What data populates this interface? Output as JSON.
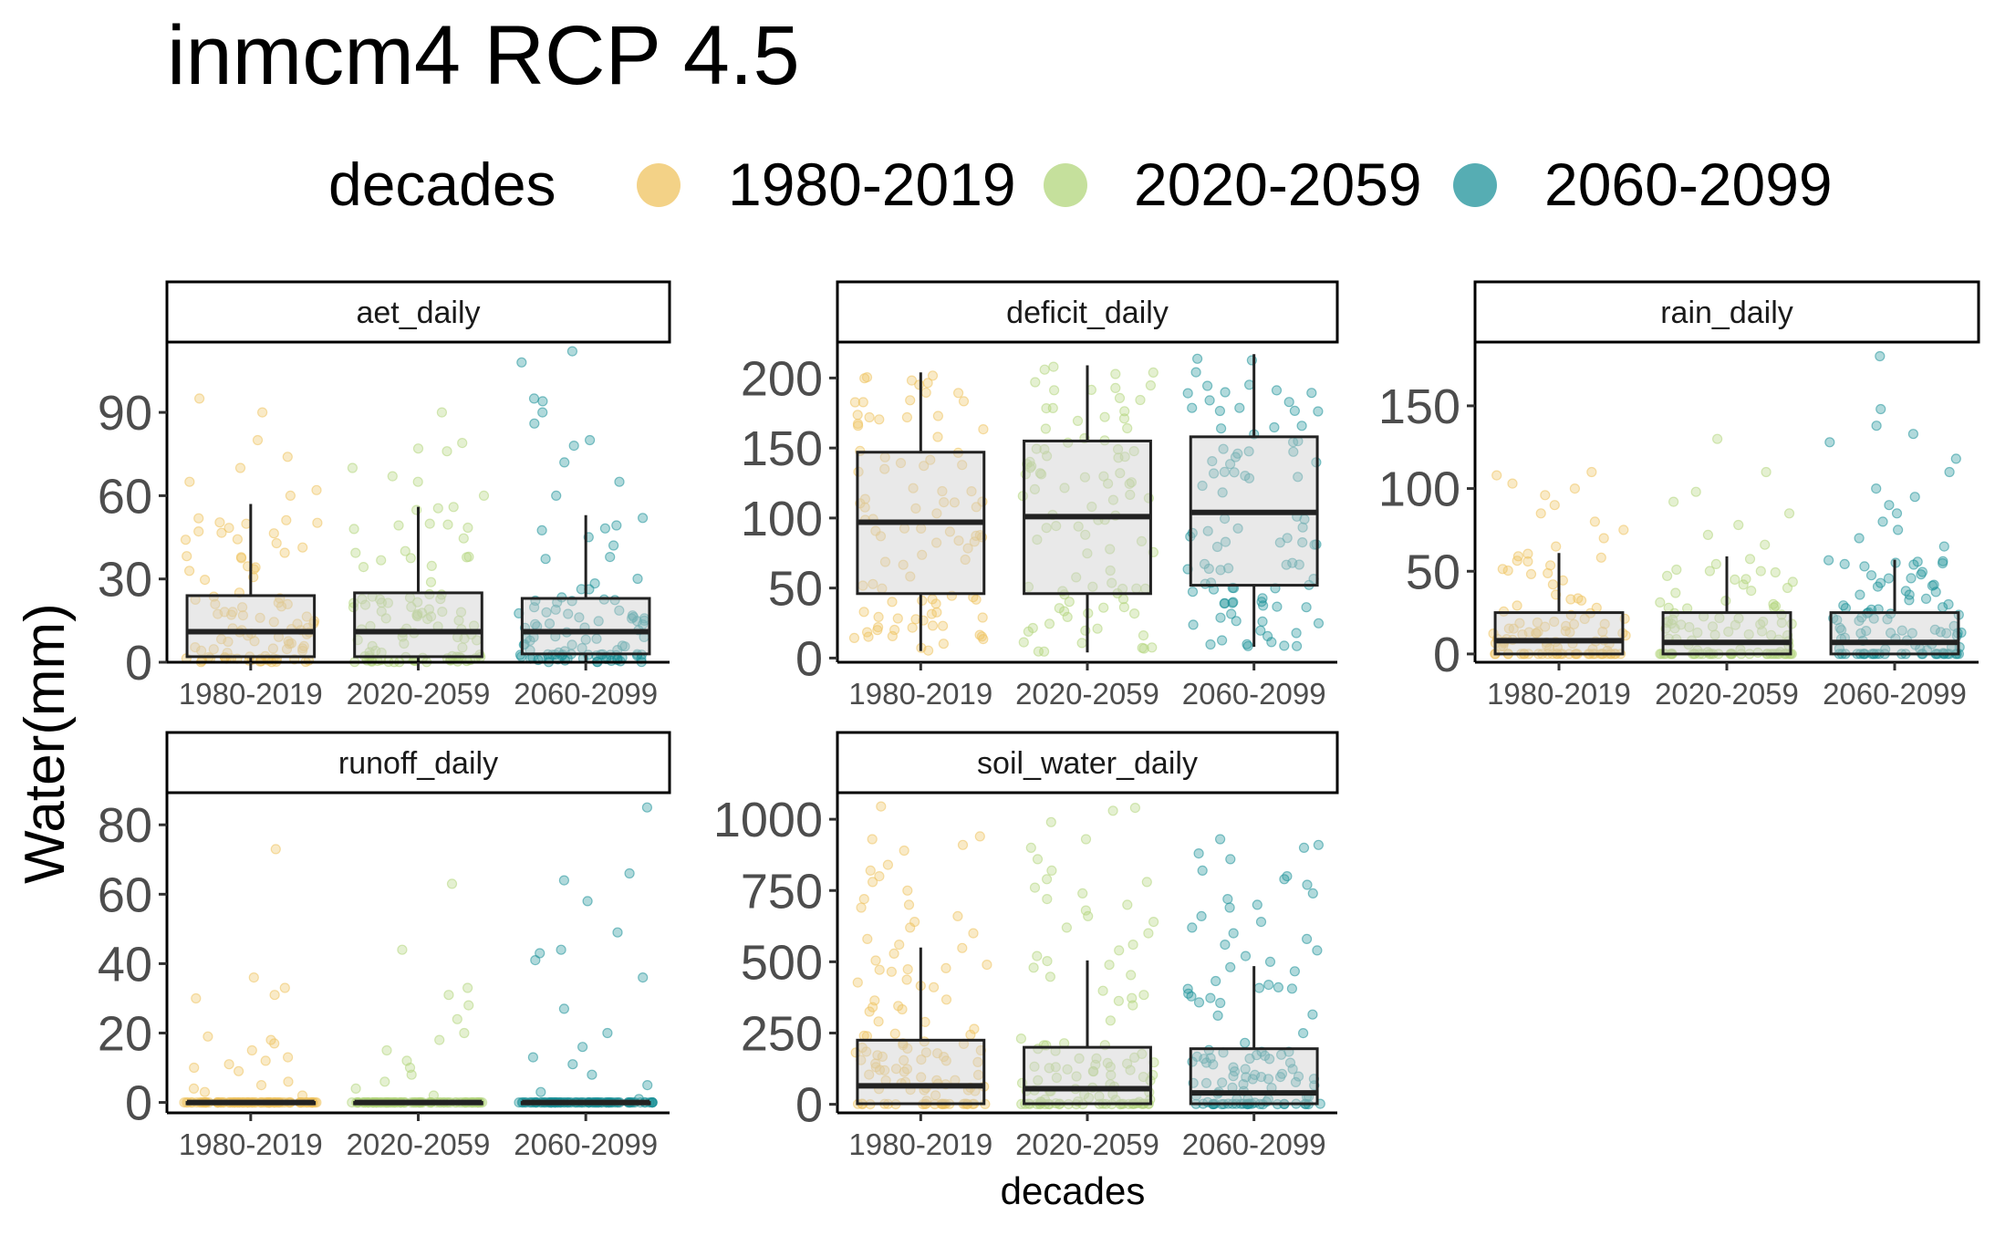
{
  "chart_data": {
    "type": "box",
    "title": "inmcm4 RCP 4.5",
    "xlabel": "decades",
    "ylabel": "Water(mm)",
    "legend": {
      "title": "decades",
      "position": "top",
      "entries": [
        {
          "label": "1980-2019",
          "color": "#EFC35F"
        },
        {
          "label": "2020-2059",
          "color": "#B2D57B"
        },
        {
          "label": "2060-2099",
          "color": "#1E9299"
        }
      ]
    },
    "categories": [
      "1980-2019",
      "2020-2059",
      "2060-2099"
    ],
    "grid": false,
    "points_shown": "jittered daily values with alpha",
    "panels": [
      {
        "name": "aet_daily",
        "ylim": [
          0,
          115
        ],
        "yticks": [
          0,
          30,
          60,
          90
        ],
        "boxes": [
          {
            "category": "1980-2019",
            "lower_whisker": 0,
            "q1": 2,
            "median": 11,
            "q3": 24,
            "upper_whisker": 57
          },
          {
            "category": "2020-2059",
            "lower_whisker": 0,
            "q1": 2,
            "median": 11,
            "q3": 25,
            "upper_whisker": 56
          },
          {
            "category": "2060-2099",
            "lower_whisker": 0,
            "q1": 3,
            "median": 11,
            "q3": 23,
            "upper_whisker": 53
          }
        ],
        "outliers": [
          {
            "category": "1980-2019",
            "values": [
              95,
              90,
              80,
              74,
              70,
              65,
              62,
              60
            ]
          },
          {
            "category": "2020-2059",
            "values": [
              90,
              79,
              77,
              76,
              70,
              67,
              65,
              60
            ]
          },
          {
            "category": "2060-2099",
            "values": [
              112,
              108,
              95,
              94,
              90,
              86,
              80,
              78,
              72,
              65,
              60
            ]
          }
        ]
      },
      {
        "name": "deficit_daily",
        "ylim": [
          -3,
          225
        ],
        "yticks": [
          0,
          50,
          100,
          150,
          200
        ],
        "boxes": [
          {
            "category": "1980-2019",
            "lower_whisker": 5,
            "q1": 46,
            "median": 97,
            "q3": 147,
            "upper_whisker": 204
          },
          {
            "category": "2020-2059",
            "lower_whisker": 4,
            "q1": 46,
            "median": 101,
            "q3": 155,
            "upper_whisker": 209
          },
          {
            "category": "2060-2099",
            "lower_whisker": 8,
            "q1": 52,
            "median": 104,
            "q3": 158,
            "upper_whisker": 217
          }
        ],
        "outliers": []
      },
      {
        "name": "rain_daily",
        "ylim": [
          -5,
          188
        ],
        "yticks": [
          0,
          50,
          100,
          150
        ],
        "boxes": [
          {
            "category": "1980-2019",
            "lower_whisker": 0,
            "q1": 0,
            "median": 8,
            "q3": 25,
            "upper_whisker": 61
          },
          {
            "category": "2020-2059",
            "lower_whisker": 0,
            "q1": 0,
            "median": 7,
            "q3": 25,
            "upper_whisker": 59
          },
          {
            "category": "2060-2099",
            "lower_whisker": 0,
            "q1": 0,
            "median": 7,
            "q3": 25,
            "upper_whisker": 57
          }
        ],
        "outliers": [
          {
            "category": "1980-2019",
            "values": [
              110,
              108,
              103,
              100,
              96,
              90,
              85,
              80,
              75,
              70,
              65
            ]
          },
          {
            "category": "2020-2059",
            "values": [
              130,
              110,
              98,
              92,
              85,
              78,
              72,
              66
            ]
          },
          {
            "category": "2060-2099",
            "values": [
              180,
              148,
              138,
              133,
              128,
              118,
              110,
              100,
              95,
              90,
              85,
              80,
              75,
              70,
              65
            ]
          }
        ]
      },
      {
        "name": "runoff_daily",
        "ylim": [
          -3,
          89
        ],
        "yticks": [
          0,
          20,
          40,
          60,
          80
        ],
        "boxes": [
          {
            "category": "1980-2019",
            "lower_whisker": 0,
            "q1": 0,
            "median": 0,
            "q3": 0,
            "upper_whisker": 0
          },
          {
            "category": "2020-2059",
            "lower_whisker": 0,
            "q1": 0,
            "median": 0,
            "q3": 0,
            "upper_whisker": 0
          },
          {
            "category": "2060-2099",
            "lower_whisker": 0,
            "q1": 0,
            "median": 0,
            "q3": 0,
            "upper_whisker": 0
          }
        ],
        "outliers": [
          {
            "category": "1980-2019",
            "values": [
              73,
              36,
              33,
              30,
              31,
              19,
              18,
              17,
              15,
              13,
              12,
              11,
              10,
              9,
              6,
              5,
              4,
              3,
              2
            ]
          },
          {
            "category": "2020-2059",
            "values": [
              63,
              44,
              33,
              31,
              28,
              24,
              20,
              18,
              15,
              12,
              10,
              8,
              6,
              4,
              2
            ]
          },
          {
            "category": "2060-2099",
            "values": [
              85,
              66,
              64,
              58,
              49,
              44,
              43,
              41,
              36,
              27,
              20,
              16,
              13,
              11,
              8,
              5,
              3,
              1
            ]
          }
        ]
      },
      {
        "name": "soil_water_daily",
        "ylim": [
          -30,
          1090
        ],
        "yticks": [
          0,
          250,
          500,
          750,
          1000
        ],
        "boxes": [
          {
            "category": "1980-2019",
            "lower_whisker": 0,
            "q1": 2,
            "median": 65,
            "q3": 225,
            "upper_whisker": 550
          },
          {
            "category": "2020-2059",
            "lower_whisker": 0,
            "q1": 2,
            "median": 55,
            "q3": 200,
            "upper_whisker": 505
          },
          {
            "category": "2060-2099",
            "lower_whisker": 0,
            "q1": 2,
            "median": 40,
            "q3": 195,
            "upper_whisker": 485
          }
        ],
        "outliers": [
          {
            "category": "1980-2019",
            "values": [
              1045,
              940,
              930,
              910,
              890,
              840,
              820,
              800,
              780,
              750,
              720,
              700,
              690,
              660,
              640,
              620,
              600,
              580,
              560
            ]
          },
          {
            "category": "2020-2059",
            "values": [
              1040,
              1030,
              990,
              930,
              900,
              860,
              820,
              790,
              780,
              760,
              740,
              720,
              700,
              680,
              660,
              640,
              620,
              600,
              560,
              540,
              520
            ]
          },
          {
            "category": "2060-2099",
            "values": [
              930,
              910,
              900,
              880,
              860,
              820,
              800,
              790,
              770,
              740,
              720,
              700,
              690,
              660,
              640,
              620,
              600,
              580,
              560,
              540,
              520,
              500
            ]
          }
        ]
      }
    ]
  }
}
